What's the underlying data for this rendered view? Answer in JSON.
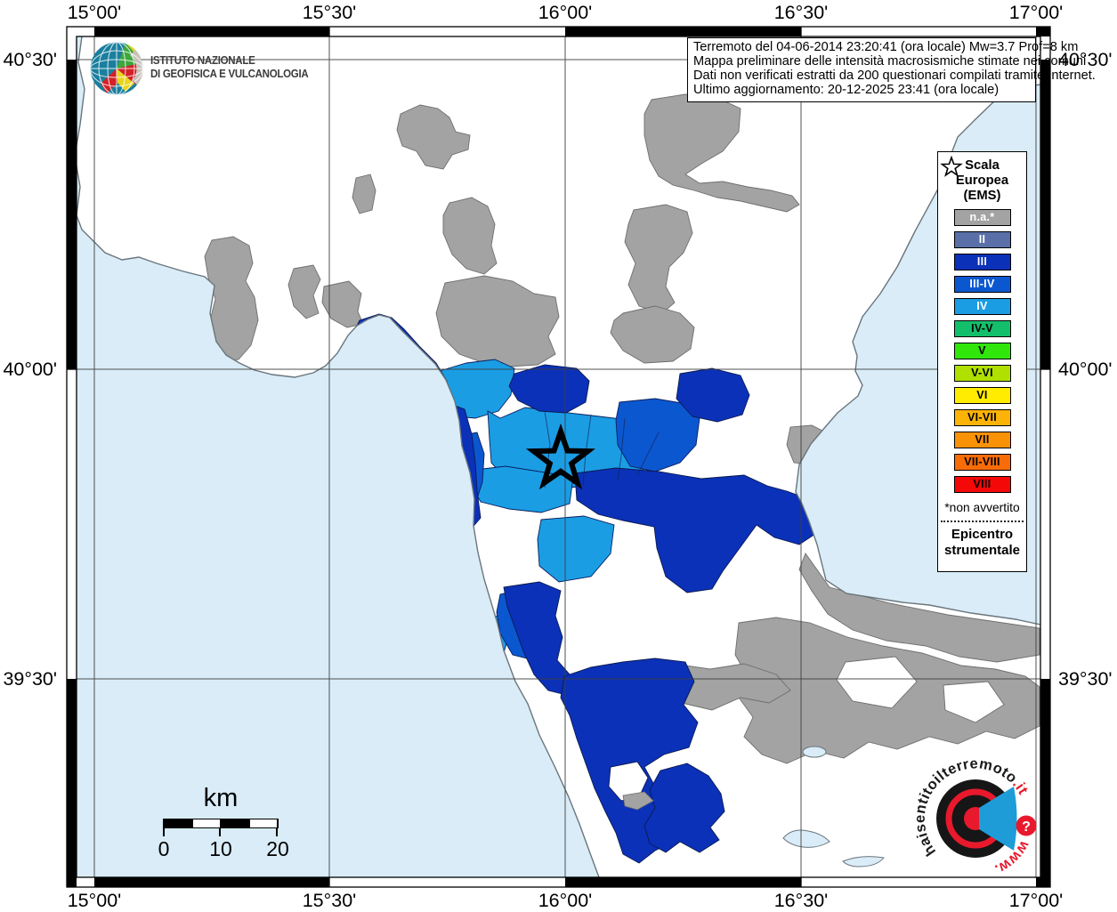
{
  "info_box": {
    "line1": "Terremoto del 04-06-2014 23:20:41 (ora locale) Mw=3.7 Prof=8 km",
    "line2": "Mappa preliminare delle intensità macrosismiche stimate nei comuni",
    "line3": "Dati non verificati estratti da 200 questionari compilati tramite Internet.",
    "line4": "Ultimo aggiornamento: 20-12-2025 23:41 (ora locale)"
  },
  "ingv_logo": {
    "line1": "ISTITUTO NAZIONALE",
    "line2": "DI GEOFISICA E VULCANOLOGIA"
  },
  "legend": {
    "title_lines": [
      "Scala",
      "Europea",
      "(EMS)"
    ],
    "items": [
      {
        "label": "n.a.*",
        "color": "#a3a3a3",
        "text_color": "#ffffff"
      },
      {
        "label": "II",
        "color": "#5a6fa8",
        "text_color": "#ffffff"
      },
      {
        "label": "III",
        "color": "#0b31b8",
        "text_color": "#ffffff"
      },
      {
        "label": "III-IV",
        "color": "#0b57d0",
        "text_color": "#ffffff"
      },
      {
        "label": "IV",
        "color": "#1b9de4",
        "text_color": "#ffffff"
      },
      {
        "label": "IV-V",
        "color": "#13bf6b",
        "text_color": "#000000"
      },
      {
        "label": "V",
        "color": "#30e60b",
        "text_color": "#000000"
      },
      {
        "label": "V-VI",
        "color": "#b0e000",
        "text_color": "#000000"
      },
      {
        "label": "VI",
        "color": "#ffec00",
        "text_color": "#000000"
      },
      {
        "label": "VI-VII",
        "color": "#fcb307",
        "text_color": "#000000"
      },
      {
        "label": "VII",
        "color": "#fa9207",
        "text_color": "#000000"
      },
      {
        "label": "VII-VIII",
        "color": "#f86c07",
        "text_color": "#000000"
      },
      {
        "label": "VIII",
        "color": "#f50808",
        "text_color": "#000000"
      }
    ],
    "footnote": "*non avvertito",
    "epicenter_label_line1": "Epicentro",
    "epicenter_label_line2": "strumentale"
  },
  "axes": {
    "lon_labels": [
      "15°00'",
      "15°30'",
      "16°00'",
      "16°30'",
      "17°00'"
    ],
    "lat_labels": [
      "40°30'",
      "40°00'",
      "39°30'"
    ]
  },
  "scale_bar": {
    "unit": "km",
    "tick0": "0",
    "tick1": "10",
    "tick2": "20"
  },
  "watermark": {
    "arc_main": "haisentitoilterremoto",
    "arc_tld": ".it",
    "arc_www": "www.",
    "badge": "?"
  },
  "map": {
    "colors": {
      "sea": "#d9ecf7",
      "land": "#ffffff",
      "na": "#a3a3a3",
      "iii": "#0b31b8",
      "iii_iv": "#0b57d0",
      "iv": "#1b9de4"
    },
    "levels_shown": [
      "n.a.*",
      "III",
      "III-IV",
      "IV"
    ]
  }
}
